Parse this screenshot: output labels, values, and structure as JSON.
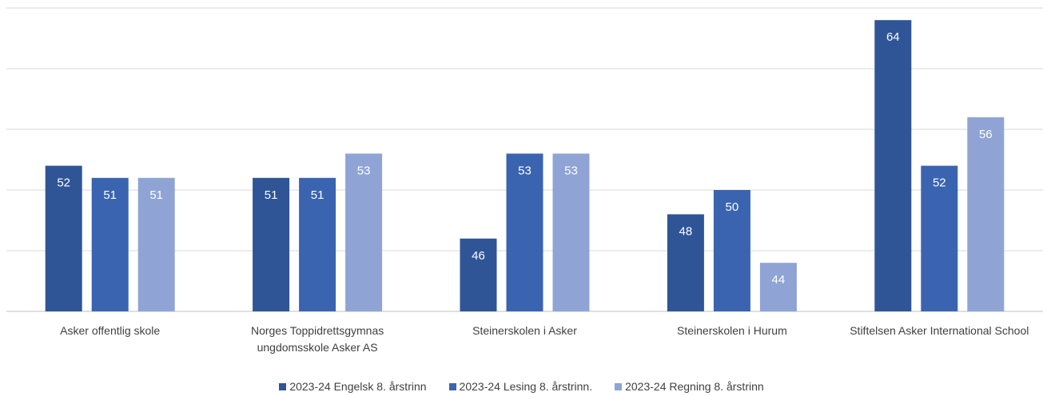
{
  "chart_data": {
    "type": "bar",
    "categories": [
      "Asker offentlig skole",
      "Norges Toppidrettsgymnas ungdomsskole Asker AS",
      "Steinerskolen i Asker",
      "Steinerskolen i Hurum",
      "Stiftelsen Asker International School"
    ],
    "series": [
      {
        "name": "2023-24 Engelsk 8. årstrinn",
        "color": "#2f5597",
        "values": [
          52,
          51,
          46,
          48,
          64
        ]
      },
      {
        "name": "2023-24 Lesing 8. årstrinn.",
        "color": "#3a64b0",
        "values": [
          51,
          51,
          53,
          50,
          52
        ]
      },
      {
        "name": "2023-24 Regning 8. årstrinn",
        "color": "#8fa4d4",
        "values": [
          51,
          53,
          53,
          44,
          56
        ]
      }
    ],
    "ylim": [
      40,
      65
    ],
    "yticks": [
      40,
      45,
      50,
      55,
      60,
      65
    ],
    "grid": true,
    "legend": "bottom"
  }
}
